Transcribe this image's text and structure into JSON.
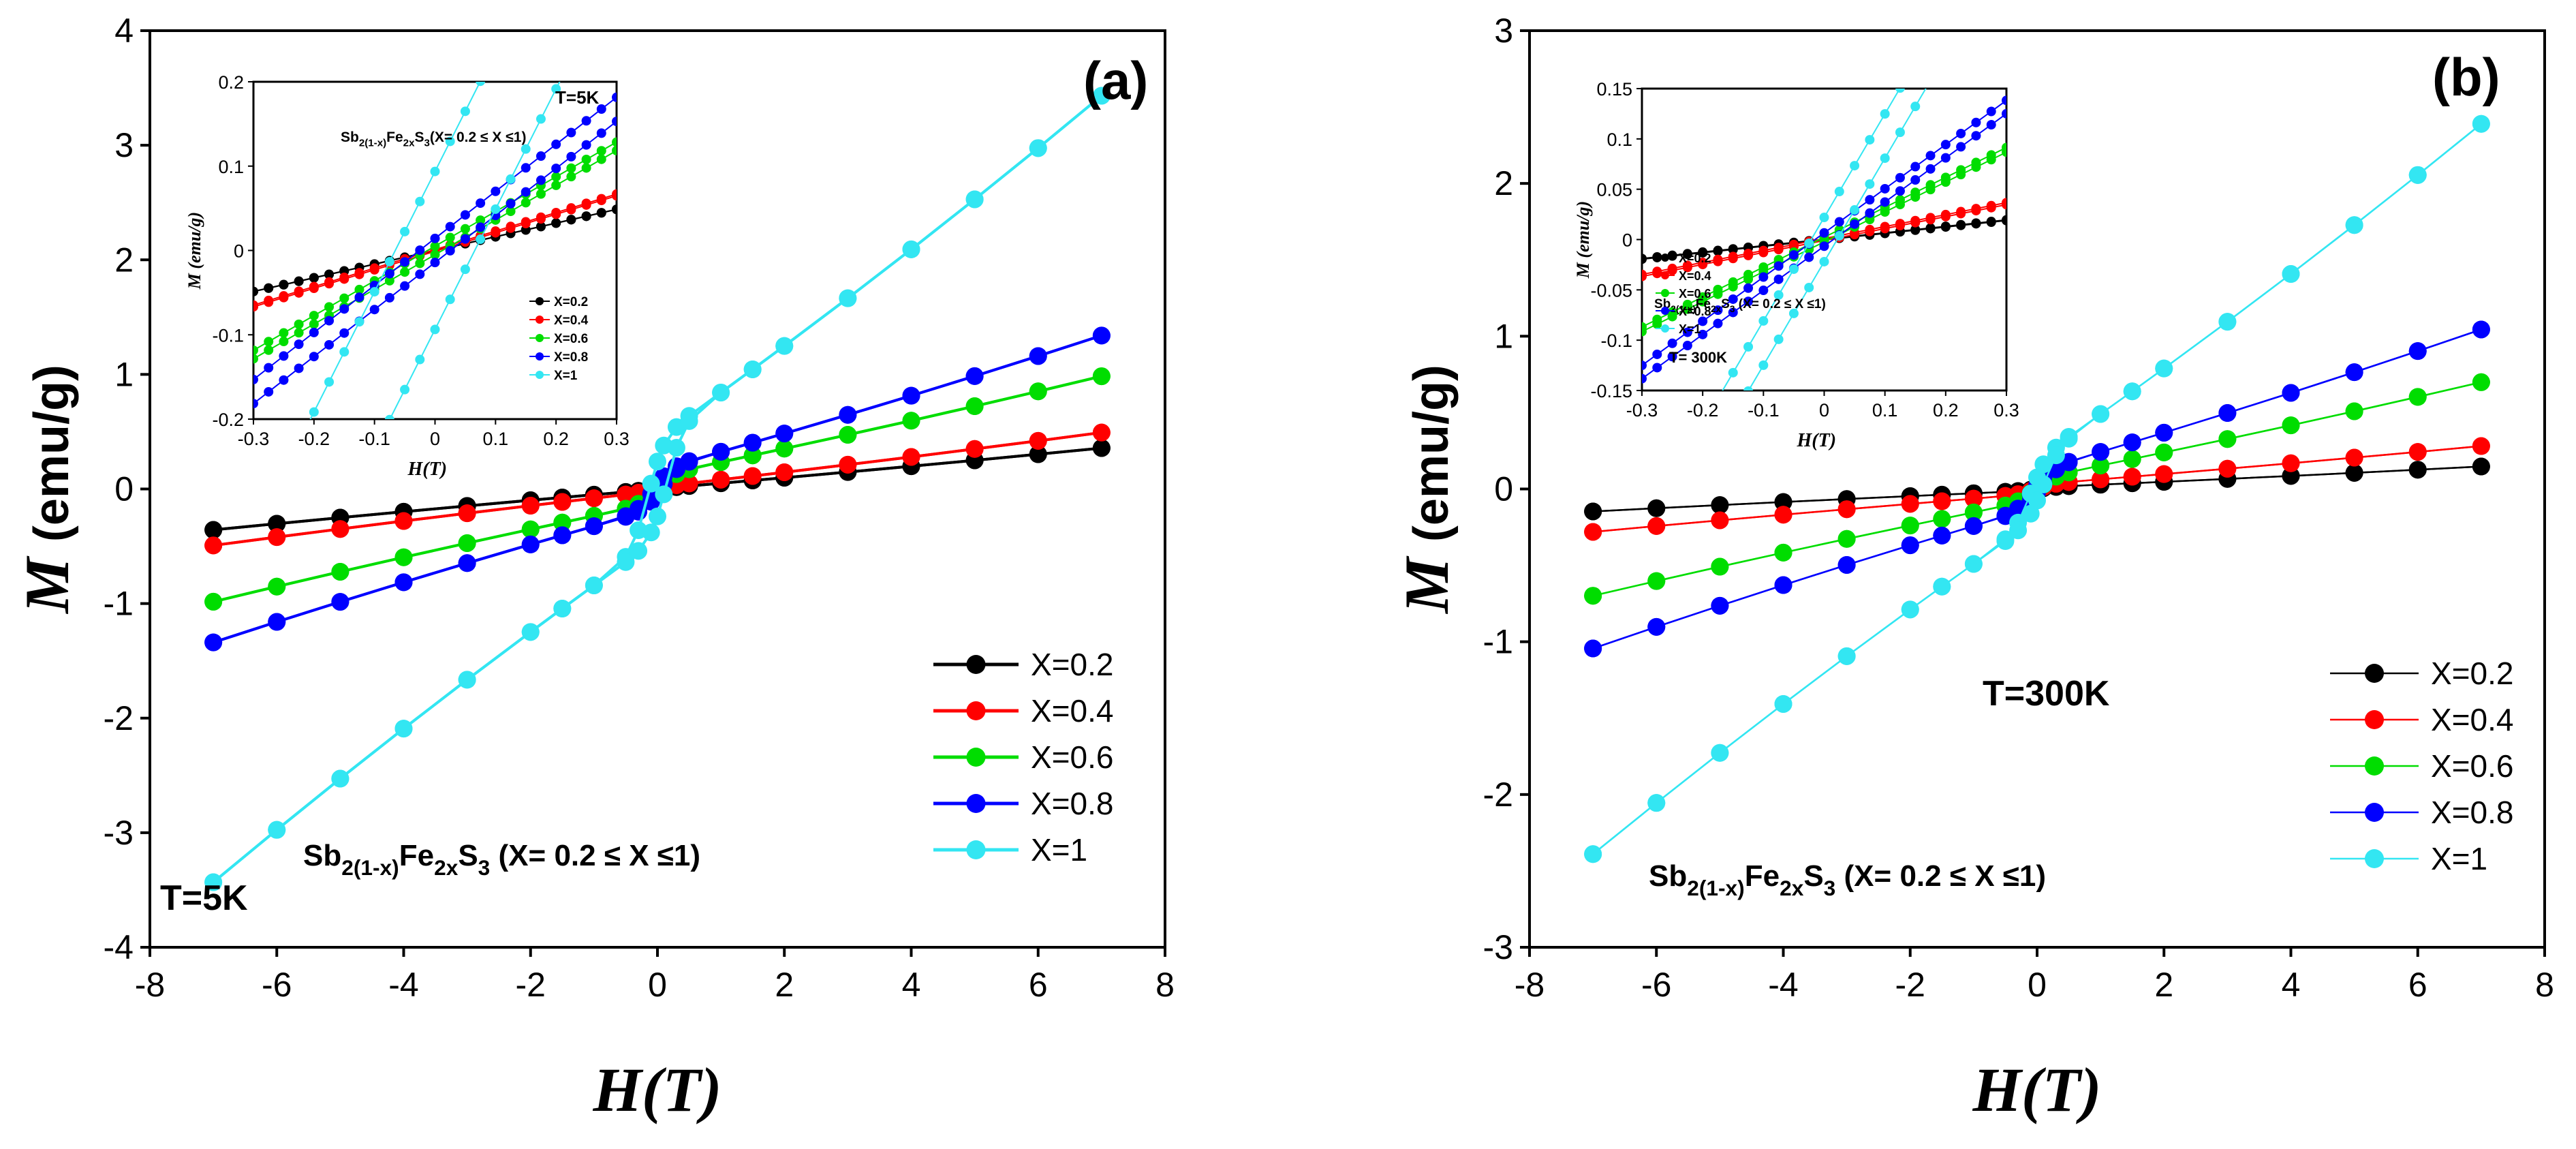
{
  "chart_data": [
    {
      "type": "line",
      "panel_label": "(a)",
      "temperature_label": "T=5K",
      "compound": {
        "base": "Sb",
        "sub1": "2(1-x)",
        "mid": "Fe",
        "sub2": "2x",
        "end": "S",
        "sub3": "3",
        "range": " (X= 0.2 ≤ X ≤1)"
      },
      "xlabel": "H(T)",
      "ylabel_m": "M",
      "ylabel_unit": "(emu/g)",
      "xlim": [
        -8,
        8
      ],
      "ylim": [
        -4,
        4
      ],
      "xticks": [
        "-8",
        "-6",
        "-4",
        "-2",
        "0",
        "2",
        "4",
        "6",
        "8"
      ],
      "yticks": [
        "-4",
        "-3",
        "-2",
        "-1",
        "0",
        "1",
        "2",
        "3",
        "4"
      ],
      "x": [
        -7,
        -6,
        -5,
        -4,
        -3,
        -2,
        -1.5,
        -1,
        -0.5,
        -0.3,
        -0.1,
        0,
        0.1,
        0.3,
        0.5,
        1,
        1.5,
        2,
        3,
        4,
        5,
        6,
        7
      ],
      "series": [
        {
          "name": "X=0.2",
          "color": "#000000",
          "ms": 0.355,
          "hc": 0.03,
          "ch": 0.003
        },
        {
          "name": "X=0.4",
          "color": "#ff0000",
          "ms": 0.48,
          "hc": 0.04,
          "ch": 0.018
        },
        {
          "name": "X=0.6",
          "color": "#00dd00",
          "ms": 0.9,
          "hc": 0.03,
          "ch": 0.12
        },
        {
          "name": "X=0.8",
          "color": "#0000ff",
          "ms": 1.22,
          "hc": 0.06,
          "ch": 0.17
        },
        {
          "name": "X=1",
          "color": "#33e6f2",
          "ms": 3.12,
          "hc": 0.15,
          "ch": 0.446
        }
      ],
      "inset": {
        "title": "T=5K",
        "compound": {
          "base": "Sb",
          "sub1": "2(1-x)",
          "mid": "Fe",
          "sub2": "2x",
          "end": "S",
          "sub3": "3",
          "range": "(X= 0.2 ≤ X ≤1)"
        },
        "xlabel": "H(T)",
        "ylabel": "M (emu/g)",
        "xlim": [
          -0.3,
          0.3
        ],
        "ylim": [
          -0.2,
          0.2
        ],
        "xticks": [
          "-0.3",
          "-0.2",
          "-0.1",
          "0",
          "0.1",
          "0.2",
          "0.3"
        ],
        "yticks": [
          "-0.2",
          "-0.1",
          "0",
          "0.1",
          "0.2"
        ]
      }
    },
    {
      "type": "line",
      "panel_label": "(b)",
      "temperature_label": "T=300K",
      "compound": {
        "base": "Sb",
        "sub1": "2(1-x)",
        "mid": "Fe",
        "sub2": "2x",
        "end": "S",
        "sub3": "3",
        "range": " (X= 0.2 ≤ X ≤1)"
      },
      "xlabel": "H(T)",
      "ylabel_m": "M",
      "ylabel_unit": "(emu/g)",
      "xlim": [
        -8,
        8
      ],
      "ylim": [
        -3,
        3
      ],
      "xticks": [
        "-8",
        "-6",
        "-4",
        "-2",
        "0",
        "2",
        "4",
        "6",
        "8"
      ],
      "yticks": [
        "-3",
        "-2",
        "-1",
        "0",
        "1",
        "2",
        "3"
      ],
      "x": [
        -7,
        -6,
        -5,
        -4,
        -3,
        -2,
        -1.5,
        -1,
        -0.5,
        -0.3,
        -0.1,
        0,
        0.1,
        0.3,
        0.5,
        1,
        1.5,
        2,
        3,
        4,
        5,
        6,
        7
      ],
      "series": [
        {
          "name": "X=0.2",
          "color": "#000000",
          "ms": 0.14,
          "hc": 0.03,
          "ch": 0.01
        },
        {
          "name": "X=0.4",
          "color": "#ff0000",
          "ms": 0.26,
          "hc": 0.03,
          "ch": 0.03
        },
        {
          "name": "X=0.6",
          "color": "#00dd00",
          "ms": 0.65,
          "hc": 0.03,
          "ch": 0.07
        },
        {
          "name": "X=0.8",
          "color": "#0000ff",
          "ms": 0.96,
          "hc": 0.05,
          "ch": 0.12
        },
        {
          "name": "X=1",
          "color": "#33e6f2",
          "ms": 2.25,
          "hc": 0.1,
          "ch": 0.2
        }
      ],
      "inset": {
        "title": "T= 300K",
        "compound": {
          "base": "Sb",
          "sub1": "2(1-x)",
          "mid": "Fe",
          "sub2": "2x",
          "end": "S",
          "sub3": "3",
          "range": " (X= 0.2 ≤ X ≤1)"
        },
        "xlabel": "H(T)",
        "ylabel": "M (emu/g)",
        "xlim": [
          -0.3,
          0.3
        ],
        "ylim": [
          -0.15,
          0.15
        ],
        "xticks": [
          "-0.3",
          "-0.2",
          "-0.1",
          "0",
          "0.1",
          "0.2",
          "0.3"
        ],
        "yticks": [
          "-0.15",
          "-0.1",
          "-0.05",
          "0",
          "0.05",
          "0.1",
          "0.15"
        ]
      }
    }
  ]
}
